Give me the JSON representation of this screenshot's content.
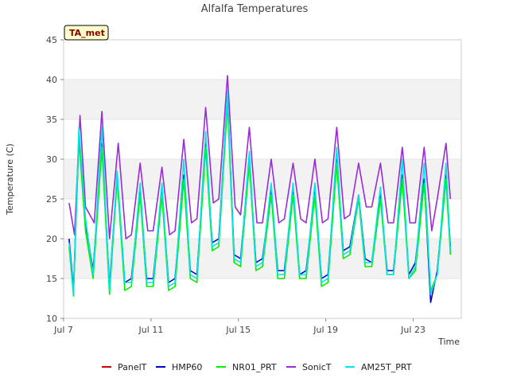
{
  "chart_data": {
    "type": "line",
    "title": "Alfalfa Temperatures",
    "xlabel": "Time",
    "ylabel": "Temperature (C)",
    "badge": "TA_met",
    "xlim": [
      7.0,
      25.2
    ],
    "ylim": [
      10,
      45
    ],
    "xticks": [
      {
        "value": 7,
        "label": "Jul 7"
      },
      {
        "value": 11,
        "label": "Jul 11"
      },
      {
        "value": 15,
        "label": "Jul 15"
      },
      {
        "value": 19,
        "label": "Jul 19"
      },
      {
        "value": 23,
        "label": "Jul 23"
      }
    ],
    "yticks": [
      10,
      15,
      20,
      25,
      30,
      35,
      40,
      45
    ],
    "grid": "alternating horizontal bands",
    "legend_position": "bottom",
    "series": [
      {
        "name": "PanelT",
        "color": "#cc0000",
        "drawn": false,
        "x": [],
        "y": []
      },
      {
        "name": "HMP60",
        "color": "#0000cc",
        "drawn": true,
        "x": [
          7.25,
          7.45,
          7.7,
          8.0,
          8.35,
          8.75,
          9.1,
          9.45,
          9.8,
          10.1,
          10.5,
          10.8,
          11.1,
          11.5,
          11.8,
          12.1,
          12.5,
          12.8,
          13.1,
          13.5,
          13.8,
          14.1,
          14.5,
          14.8,
          15.1,
          15.5,
          15.8,
          16.1,
          16.5,
          16.8,
          17.1,
          17.5,
          17.8,
          18.1,
          18.5,
          18.8,
          19.1,
          19.5,
          19.8,
          20.1,
          20.5,
          20.8,
          21.1,
          21.5,
          21.8,
          22.1,
          22.5,
          22.8,
          23.1,
          23.5,
          23.8,
          24.1,
          24.5,
          24.7
        ],
        "y": [
          20.0,
          13.5,
          33.0,
          22.0,
          16.0,
          32.0,
          14.0,
          28.0,
          14.5,
          15.0,
          26.0,
          15.0,
          15.0,
          26.0,
          14.5,
          15.0,
          28.0,
          16.0,
          15.5,
          32.0,
          19.5,
          20.0,
          38.0,
          18.0,
          17.5,
          30.0,
          17.0,
          17.5,
          26.0,
          16.0,
          16.0,
          26.0,
          15.5,
          16.0,
          26.0,
          15.0,
          15.5,
          30.0,
          18.5,
          19.0,
          25.5,
          17.5,
          17.0,
          25.5,
          16.0,
          16.0,
          28.0,
          15.5,
          17.0,
          27.5,
          12.0,
          16.0,
          28.0,
          19.0
        ]
      },
      {
        "name": "NR01_PRT",
        "color": "#00ee00",
        "drawn": true,
        "x": [
          7.25,
          7.45,
          7.7,
          8.0,
          8.35,
          8.75,
          9.1,
          9.45,
          9.8,
          10.1,
          10.5,
          10.8,
          11.1,
          11.5,
          11.8,
          12.1,
          12.5,
          12.8,
          13.1,
          13.5,
          13.8,
          14.1,
          14.5,
          14.8,
          15.1,
          15.5,
          15.8,
          16.1,
          16.5,
          16.8,
          17.1,
          17.5,
          17.8,
          18.1,
          18.5,
          18.8,
          19.1,
          19.5,
          19.8,
          20.1,
          20.5,
          20.8,
          21.1,
          21.5,
          21.8,
          22.1,
          22.5,
          22.8,
          23.1,
          23.5,
          23.8,
          24.1,
          24.5,
          24.7
        ],
        "y": [
          19.0,
          12.8,
          32.5,
          21.0,
          15.0,
          31.5,
          13.0,
          27.5,
          13.5,
          14.0,
          25.5,
          14.0,
          14.0,
          25.5,
          13.5,
          14.0,
          27.5,
          15.0,
          14.5,
          31.5,
          18.5,
          19.0,
          37.0,
          17.0,
          16.5,
          29.5,
          16.0,
          16.5,
          25.5,
          15.0,
          15.0,
          25.5,
          15.0,
          15.0,
          25.5,
          14.0,
          14.5,
          29.5,
          17.5,
          18.0,
          25.0,
          16.5,
          16.5,
          25.0,
          15.5,
          15.5,
          27.5,
          15.0,
          16.0,
          27.0,
          13.5,
          15.5,
          27.5,
          18.0
        ]
      },
      {
        "name": "SonicT",
        "color": "#9a2bd6",
        "drawn": true,
        "x": [
          7.25,
          7.5,
          7.75,
          8.0,
          8.4,
          8.75,
          9.1,
          9.5,
          9.85,
          10.1,
          10.5,
          10.85,
          11.1,
          11.5,
          11.85,
          12.1,
          12.5,
          12.85,
          13.1,
          13.5,
          13.85,
          14.1,
          14.5,
          14.85,
          15.1,
          15.5,
          15.85,
          16.1,
          16.5,
          16.85,
          17.1,
          17.5,
          17.85,
          18.1,
          18.5,
          18.85,
          19.1,
          19.5,
          19.85,
          20.1,
          20.5,
          20.85,
          21.1,
          21.5,
          21.85,
          22.1,
          22.5,
          22.85,
          23.1,
          23.5,
          23.85,
          24.1,
          24.5,
          24.7
        ],
        "y": [
          24.5,
          20.5,
          35.5,
          24.0,
          22.0,
          36.0,
          20.0,
          32.0,
          20.0,
          20.5,
          29.5,
          21.0,
          21.0,
          29.0,
          20.5,
          21.0,
          32.5,
          22.0,
          22.5,
          36.5,
          24.5,
          25.0,
          40.5,
          24.0,
          23.0,
          34.0,
          22.0,
          22.0,
          30.0,
          22.0,
          22.5,
          29.5,
          22.5,
          22.0,
          30.0,
          22.0,
          22.5,
          34.0,
          22.5,
          23.0,
          29.5,
          24.0,
          24.0,
          29.5,
          22.0,
          22.0,
          31.5,
          22.0,
          22.0,
          31.5,
          21.0,
          25.0,
          32.0,
          25.0
        ]
      },
      {
        "name": "AM25T_PRT",
        "color": "#00e5e5",
        "drawn": true,
        "x": [
          7.25,
          7.45,
          7.7,
          8.0,
          8.35,
          8.75,
          9.1,
          9.45,
          9.8,
          10.1,
          10.5,
          10.8,
          11.1,
          11.5,
          11.8,
          12.1,
          12.5,
          12.8,
          13.1,
          13.5,
          13.8,
          14.1,
          14.5,
          14.8,
          15.1,
          15.5,
          15.8,
          16.1,
          16.5,
          16.8,
          17.1,
          17.5,
          17.8,
          18.1,
          18.5,
          18.8,
          19.1,
          19.5,
          19.8,
          20.1,
          20.5,
          20.8,
          21.1,
          21.5,
          21.8,
          22.1,
          22.5,
          22.8,
          23.1,
          23.5,
          23.8,
          24.1,
          24.5,
          24.7
        ],
        "y": [
          19.5,
          13.0,
          34.0,
          22.5,
          15.5,
          34.0,
          13.5,
          28.5,
          14.5,
          14.5,
          27.0,
          14.5,
          14.5,
          27.0,
          14.0,
          14.5,
          30.0,
          15.5,
          15.0,
          33.5,
          19.0,
          19.5,
          38.5,
          17.5,
          17.0,
          31.0,
          16.5,
          17.0,
          27.0,
          15.5,
          15.5,
          27.0,
          15.5,
          15.5,
          27.0,
          14.5,
          15.0,
          31.5,
          18.0,
          18.5,
          25.5,
          17.0,
          17.0,
          26.5,
          15.5,
          15.5,
          30.0,
          15.0,
          16.5,
          29.5,
          13.0,
          15.5,
          29.5,
          18.5
        ]
      }
    ]
  }
}
